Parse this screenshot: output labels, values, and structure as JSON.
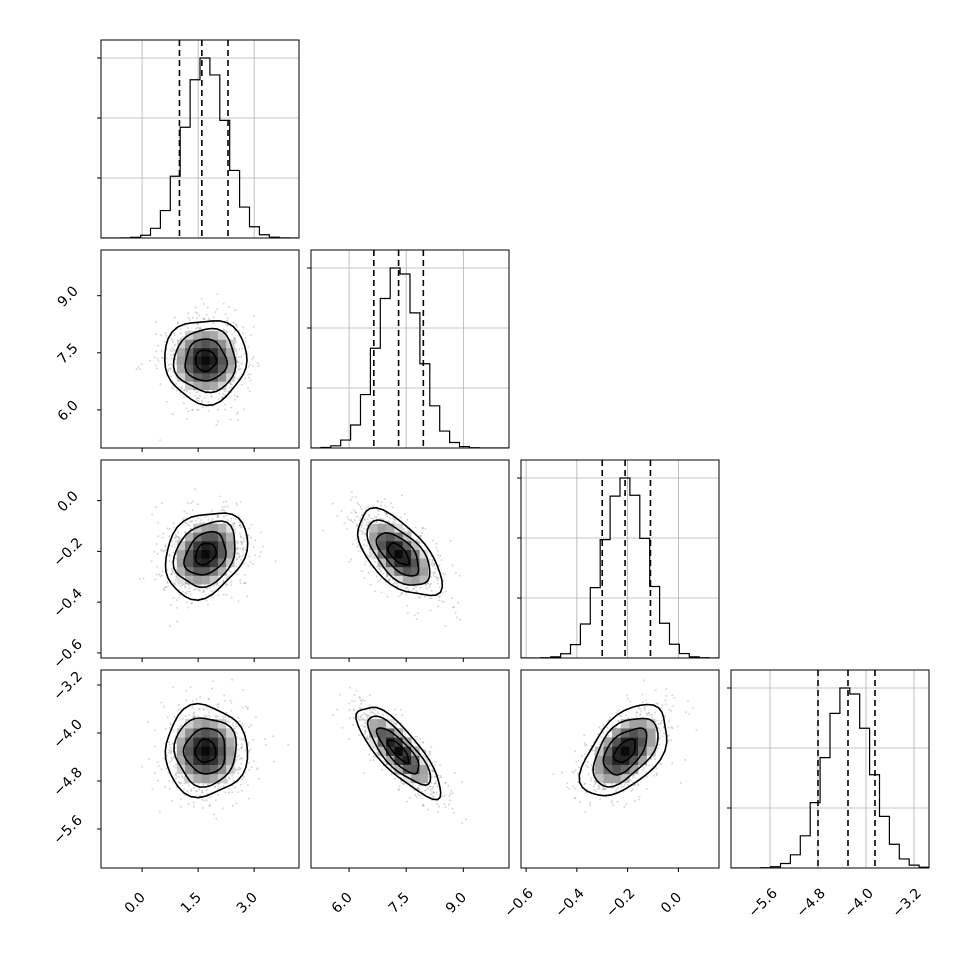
{
  "chart_data": {
    "type": "corner",
    "parameters": [
      {
        "ticks": [
          0.0,
          1.5,
          3.0
        ],
        "tick_labels": [
          "0.0",
          "1.5",
          "3.0"
        ],
        "range": [
          -1.1,
          4.2
        ],
        "mean": 1.7,
        "sd": 0.55,
        "quantiles": [
          1.0,
          1.6,
          2.3
        ]
      },
      {
        "ticks": [
          6.0,
          7.5,
          9.0
        ],
        "tick_labels": [
          "6.0",
          "7.5",
          "9.0"
        ],
        "range": [
          5.0,
          10.2
        ],
        "mean": 7.3,
        "sd": 0.55,
        "quantiles": [
          6.65,
          7.3,
          7.95
        ]
      },
      {
        "ticks": [
          -0.6,
          -0.4,
          -0.2,
          0.0
        ],
        "tick_labels": [
          "−0.6",
          "−0.4",
          "−0.2",
          "0.0"
        ],
        "range": [
          -0.62,
          0.16
        ],
        "mean": -0.21,
        "sd": 0.085,
        "quantiles": [
          -0.3,
          -0.21,
          -0.11
        ]
      },
      {
        "ticks": [
          -5.6,
          -4.8,
          -4.0,
          -3.2
        ],
        "tick_labels": [
          "−5.6",
          "−4.8",
          "−4.0",
          "−3.2"
        ],
        "range": [
          -6.25,
          -2.95
        ],
        "mean": -4.3,
        "sd": 0.38,
        "quantiles": [
          -4.8,
          -4.3,
          -3.85
        ]
      }
    ],
    "correlations": [
      [
        0,
        1,
        0.0
      ],
      [
        0,
        2,
        0.25
      ],
      [
        1,
        2,
        -0.6
      ],
      [
        0,
        3,
        0.0
      ],
      [
        1,
        3,
        -0.8
      ],
      [
        2,
        3,
        0.5
      ]
    ],
    "histogram_bins": 20,
    "contour_levels_sigma": [
      0.5,
      1.0,
      1.5,
      2.0
    ],
    "quantile_line_style": "dashed",
    "grid": true,
    "colors": {
      "scatter": "#8c8c8c",
      "line": "#000000"
    }
  }
}
